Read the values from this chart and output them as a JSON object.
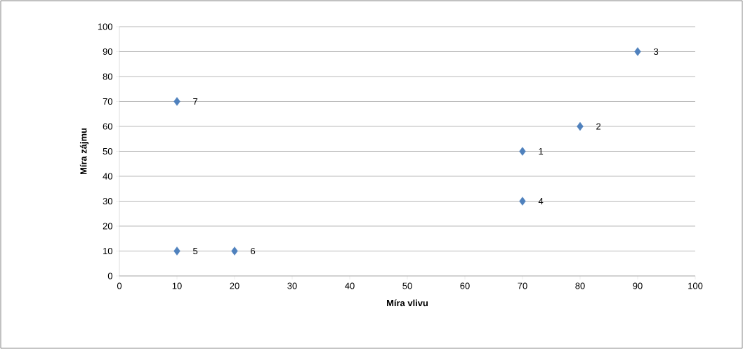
{
  "chart_data": {
    "type": "scatter",
    "xlabel": "Míra vlivu",
    "ylabel": "Míra zájmu",
    "x": [
      70,
      80,
      90,
      70,
      10,
      20,
      10
    ],
    "values": [
      50,
      60,
      90,
      30,
      10,
      10,
      70
    ],
    "annotations": [
      {
        "text": "1",
        "x": 70,
        "y": 50
      },
      {
        "text": "2",
        "x": 80,
        "y": 60
      },
      {
        "text": "3",
        "x": 90,
        "y": 90
      },
      {
        "text": "4",
        "x": 70,
        "y": 30
      },
      {
        "text": "5",
        "x": 10,
        "y": 10
      },
      {
        "text": "6",
        "x": 20,
        "y": 10
      },
      {
        "text": "7",
        "x": 10,
        "y": 70
      }
    ],
    "color": "#4f81bd",
    "marker": "diamond",
    "xlim": [
      0,
      100
    ],
    "xticks": [
      0,
      10,
      20,
      30,
      40,
      50,
      60,
      70,
      80,
      90,
      100
    ],
    "ylim": [
      0,
      100
    ],
    "yticks": [
      0,
      10,
      20,
      30,
      40,
      50,
      60,
      70,
      80,
      90,
      100
    ],
    "grid": "y"
  }
}
